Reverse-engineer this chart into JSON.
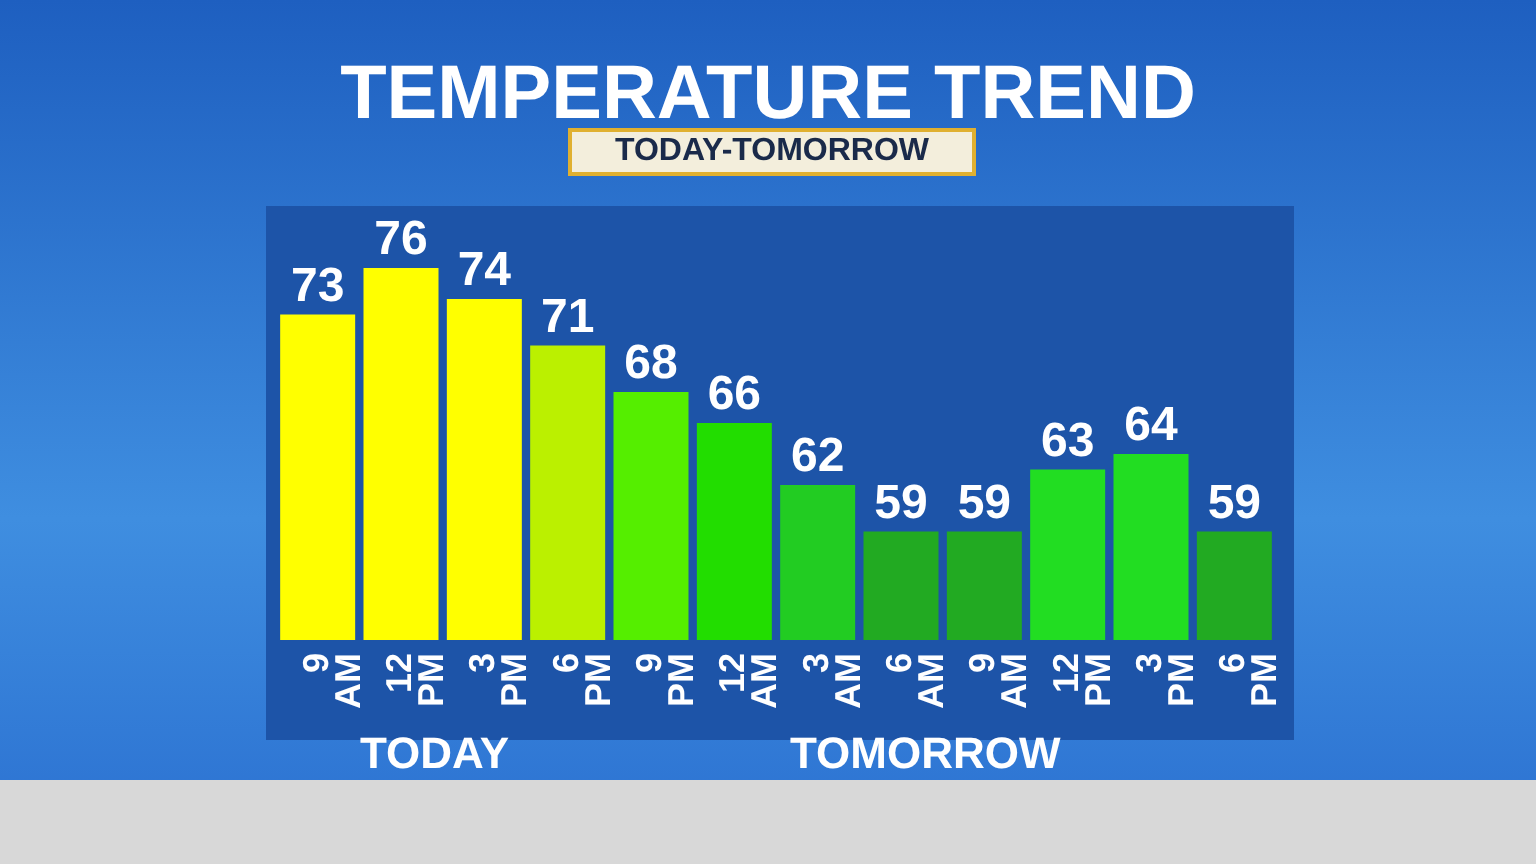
{
  "chart_data": {
    "type": "bar",
    "title": "TEMPERATURE TREND",
    "subtitle": "TODAY-TOMORROW",
    "categories": [
      "9 AM",
      "12 PM",
      "3 PM",
      "6 PM",
      "9 PM",
      "12 AM",
      "3 AM",
      "6 AM",
      "9 AM",
      "12 PM",
      "3 PM",
      "6 PM"
    ],
    "values": [
      73,
      76,
      74,
      71,
      68,
      66,
      62,
      59,
      59,
      63,
      64,
      59
    ],
    "colors": [
      "#ffff00",
      "#ffff00",
      "#ffff00",
      "#bbf000",
      "#55ee00",
      "#22dd00",
      "#22cc22",
      "#22aa22",
      "#22aa22",
      "#22dd22",
      "#22dd22",
      "#22aa22"
    ],
    "ylim": [
      52,
      80
    ],
    "tick_labels": "x",
    "grid": false,
    "data_labels": true,
    "annotations": [
      "TODAY",
      "TOMORROW"
    ]
  }
}
